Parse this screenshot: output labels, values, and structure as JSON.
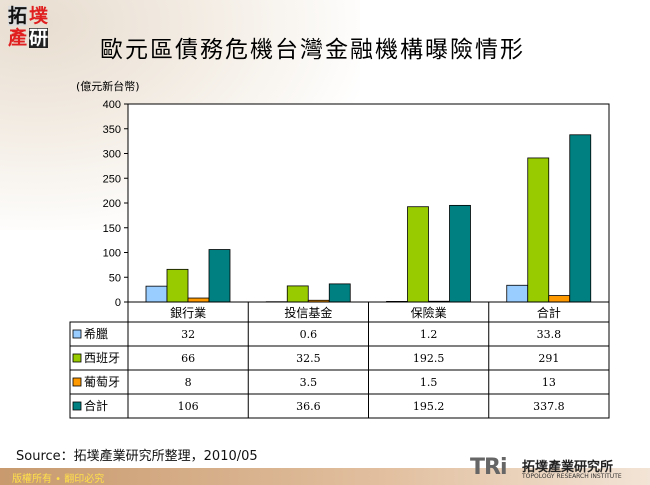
{
  "header": {
    "title": "歐元區債務危機台灣金融機構曝險情形",
    "logo_text": "拓墣產研"
  },
  "chart_data": {
    "type": "bar",
    "title": "歐元區債務危機台灣金融機構曝險情形",
    "ylabel": "(億元新台幣)",
    "ylim": [
      0,
      400
    ],
    "yticks": [
      "0",
      "50",
      "100",
      "150",
      "200",
      "250",
      "300",
      "350",
      "400"
    ],
    "categories": [
      "銀行業",
      "投信基金",
      "保險業",
      "合計"
    ],
    "series": [
      {
        "name": "希臘",
        "color": "#99ccff",
        "values": [
          32,
          0.6,
          1.2,
          33.8
        ],
        "labels": [
          "32",
          "0.6",
          "1.2",
          "33.8"
        ]
      },
      {
        "name": "西班牙",
        "color": "#99cc00",
        "values": [
          66,
          32.5,
          192.5,
          291
        ],
        "labels": [
          "66",
          "32.5",
          "192.5",
          "291"
        ]
      },
      {
        "name": "葡萄牙",
        "color": "#ff9900",
        "values": [
          8,
          3.5,
          1.5,
          13
        ],
        "labels": [
          "8",
          "3.5",
          "1.5",
          "13"
        ]
      },
      {
        "name": "合計",
        "color": "#008080",
        "values": [
          106,
          36.6,
          195.2,
          337.8
        ],
        "labels": [
          "106",
          "36.6",
          "195.2",
          "337.8"
        ]
      }
    ],
    "grid": false,
    "legend": "data-table-below"
  },
  "footer": {
    "source": "Source：拓墣產業研究所整理，2010/05",
    "copyright": "版權所有 • 翻印必究",
    "brand": "TRi",
    "brand_cn": "拓墣產業研究所",
    "brand_en": "TOPOLOGY RESEARCH INSTITUTE"
  }
}
